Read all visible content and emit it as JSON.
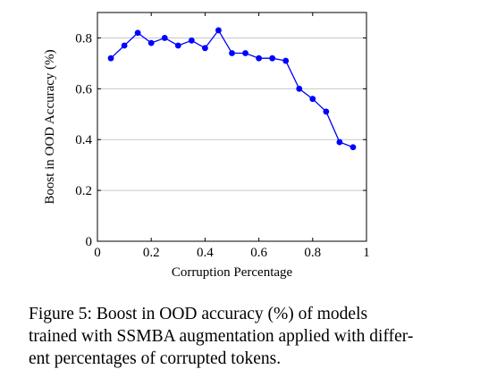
{
  "chart_data": {
    "type": "line",
    "xlabel": "Corruption Percentage",
    "ylabel": "Boost in OOD Accuracy (%)",
    "xlim": [
      0,
      1
    ],
    "ylim": [
      0,
      0.9
    ],
    "x_ticks": [
      0,
      0.2,
      0.4,
      0.6,
      0.8,
      1
    ],
    "x_tick_labels": [
      "0",
      "0.2",
      "0.4",
      "0.6",
      "0.8",
      "1"
    ],
    "y_ticks": [
      0,
      0.2,
      0.4,
      0.6,
      0.8
    ],
    "y_tick_labels": [
      "0",
      "0.2",
      "0.4",
      "0.6",
      "0.8"
    ],
    "grid": "horizontal",
    "color": "#0000ff",
    "series": [
      {
        "x": [
          0.05,
          0.1,
          0.15,
          0.2,
          0.25,
          0.3,
          0.35,
          0.4,
          0.45,
          0.5,
          0.55,
          0.6,
          0.65,
          0.7,
          0.75,
          0.8,
          0.85,
          0.9,
          0.95
        ],
        "y": [
          0.72,
          0.77,
          0.82,
          0.78,
          0.8,
          0.77,
          0.79,
          0.76,
          0.83,
          0.74,
          0.74,
          0.72,
          0.72,
          0.71,
          0.6,
          0.56,
          0.51,
          0.39,
          0.37
        ]
      }
    ]
  },
  "caption": {
    "lines": [
      "Figure 5:  Boost in OOD accuracy (%) of models",
      "trained with SSMBA augmentation applied with differ-",
      "ent percentages of corrupted tokens."
    ]
  }
}
